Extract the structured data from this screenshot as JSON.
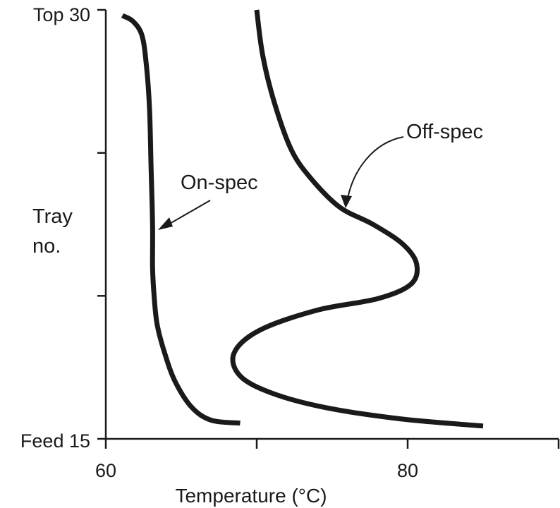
{
  "chart_data": {
    "type": "line",
    "title": "",
    "xlabel": "Temperature (°C)",
    "ylabel": [
      "Tray",
      "no."
    ],
    "xlim": [
      60,
      90
    ],
    "ylim": [
      15,
      30
    ],
    "grid": false,
    "legend": "none",
    "x_ticks": [
      {
        "value": 60,
        "label": "60"
      },
      {
        "value": 70,
        "label": ""
      },
      {
        "value": 80,
        "label": "80"
      },
      {
        "value": 90,
        "label": ""
      }
    ],
    "y_ticks": [
      {
        "value": 30,
        "label": "Top 30"
      },
      {
        "value": 25,
        "label": ""
      },
      {
        "value": 20,
        "label": ""
      },
      {
        "value": 15,
        "label": "Feed 15"
      }
    ],
    "series": [
      {
        "name": "On-spec",
        "points": [
          [
            61.1,
            29.8
          ],
          [
            61.8,
            29.6
          ],
          [
            62.4,
            29.1
          ],
          [
            62.7,
            28.0
          ],
          [
            62.9,
            26.5
          ],
          [
            63.0,
            24.5
          ],
          [
            63.1,
            22.5
          ],
          [
            63.1,
            21.0
          ],
          [
            63.2,
            20.0
          ],
          [
            63.4,
            19.0
          ],
          [
            63.9,
            18.0
          ],
          [
            64.6,
            17.0
          ],
          [
            65.7,
            16.1
          ],
          [
            67.0,
            15.65
          ],
          [
            68.9,
            15.55
          ]
        ]
      },
      {
        "name": "Off-spec",
        "points": [
          [
            70.0,
            30.0
          ],
          [
            70.4,
            28.4
          ],
          [
            71.2,
            26.7
          ],
          [
            72.3,
            25.1
          ],
          [
            73.6,
            24.1
          ],
          [
            75.5,
            23.1
          ],
          [
            77.7,
            22.5
          ],
          [
            79.7,
            21.8
          ],
          [
            80.6,
            21.1
          ],
          [
            80.2,
            20.4
          ],
          [
            78.0,
            19.9
          ],
          [
            74.0,
            19.5
          ],
          [
            70.2,
            18.8
          ],
          [
            68.5,
            18.0
          ],
          [
            68.9,
            17.2
          ],
          [
            71.0,
            16.6
          ],
          [
            74.5,
            16.1
          ],
          [
            79.5,
            15.7
          ],
          [
            85.0,
            15.45
          ]
        ]
      }
    ],
    "annotations": [
      {
        "text": "On-spec",
        "target_series": "On-spec"
      },
      {
        "text": "Off-spec",
        "target_series": "Off-spec"
      }
    ]
  }
}
